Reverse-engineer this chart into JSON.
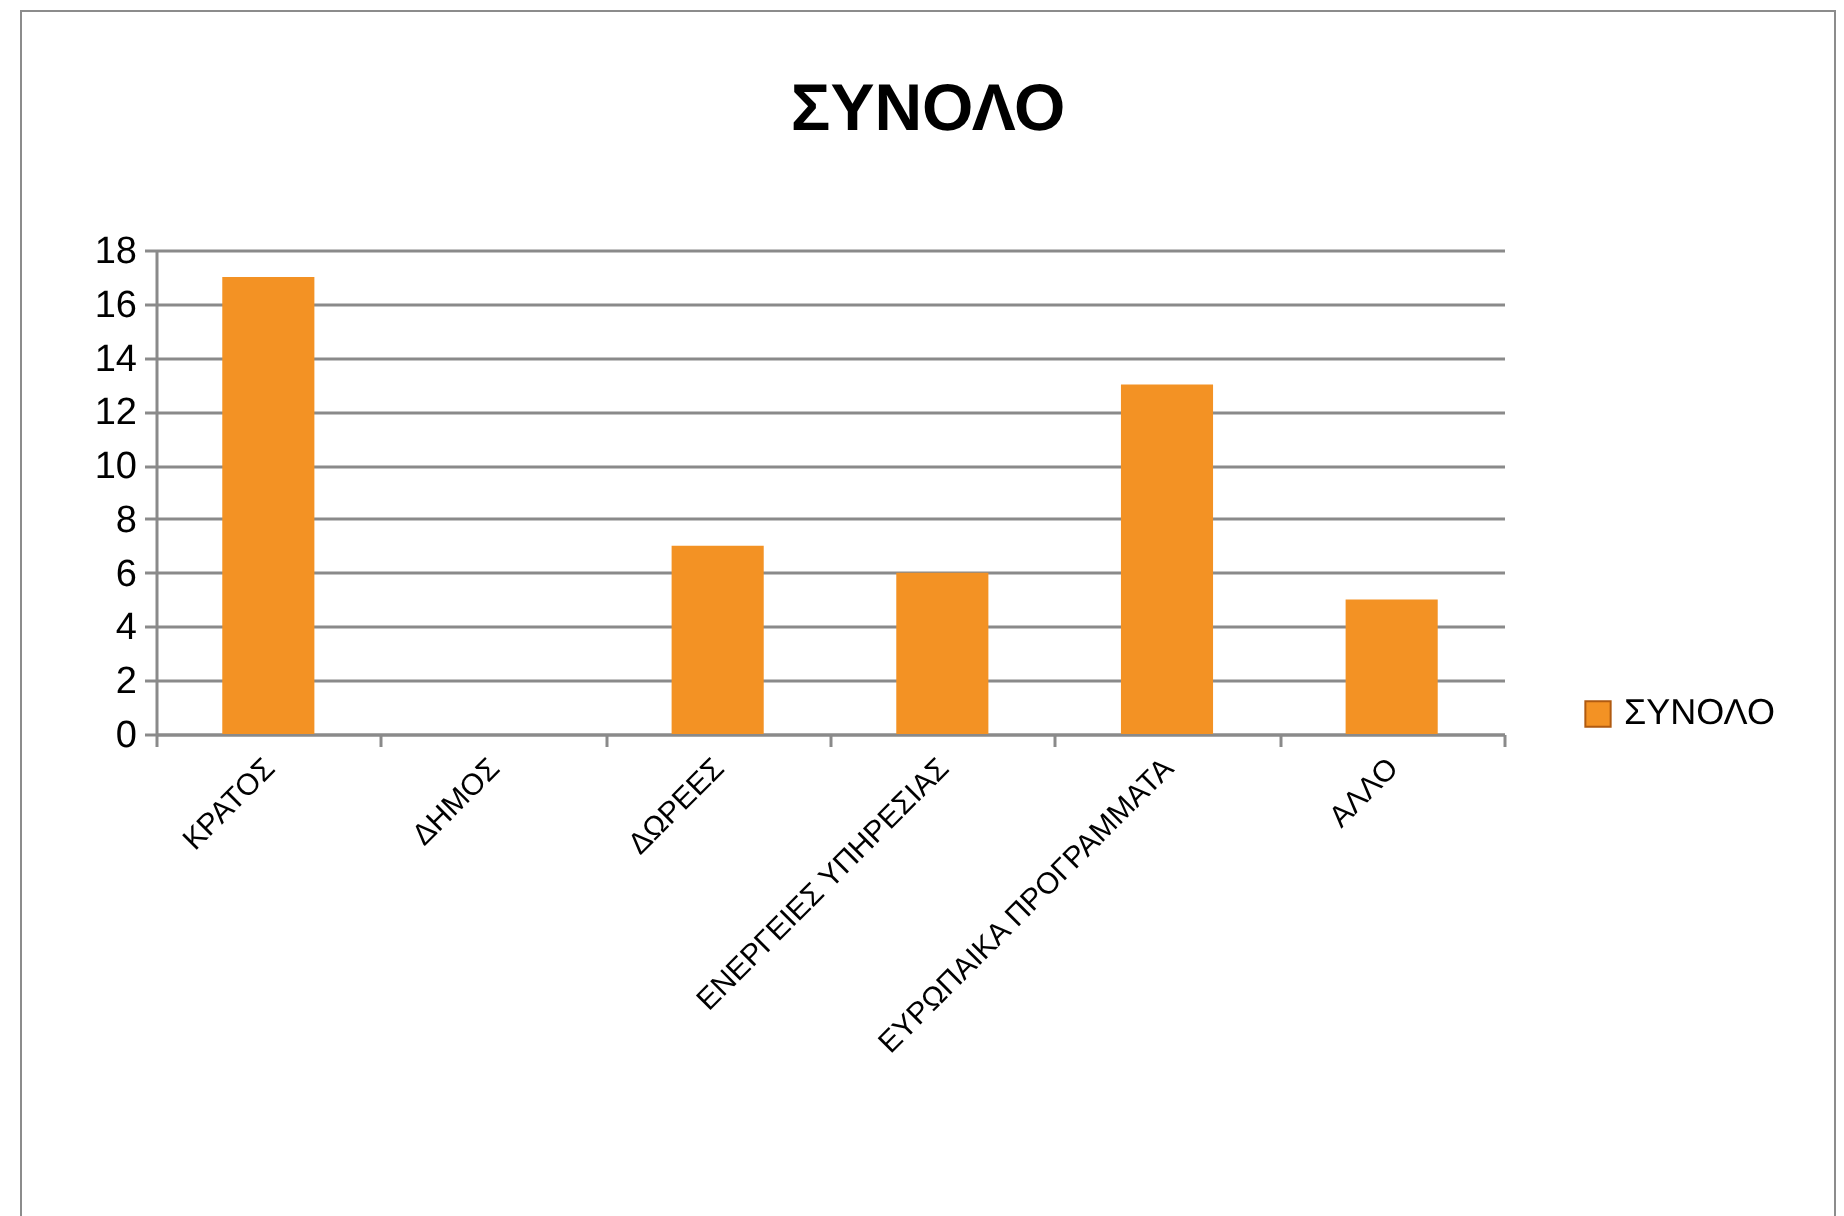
{
  "chart_data": {
    "type": "bar",
    "title": "ΣΥΝΟΛΟ",
    "categories": [
      "ΚΡΑΤΟΣ",
      "ΔΗΜΟΣ",
      "ΔΩΡΕΕΣ",
      "ΕΝΕΡΓΕΙΕΣ ΥΠΗΡΕΣΙΑΣ",
      "ΕΥΡΩΠΑΙΚΑ ΠΡΟΓΡΑΜΜΑΤΑ",
      "ΑΛΛΟ"
    ],
    "series": [
      {
        "name": "ΣΥΝΟΛΟ",
        "color": "#f39224",
        "values": [
          17,
          0,
          7,
          6,
          13,
          5
        ]
      }
    ],
    "ylim": [
      0,
      18
    ],
    "yticks": [
      0,
      2,
      4,
      6,
      8,
      10,
      12,
      14,
      16,
      18
    ],
    "grid": "y",
    "legend": "right"
  }
}
